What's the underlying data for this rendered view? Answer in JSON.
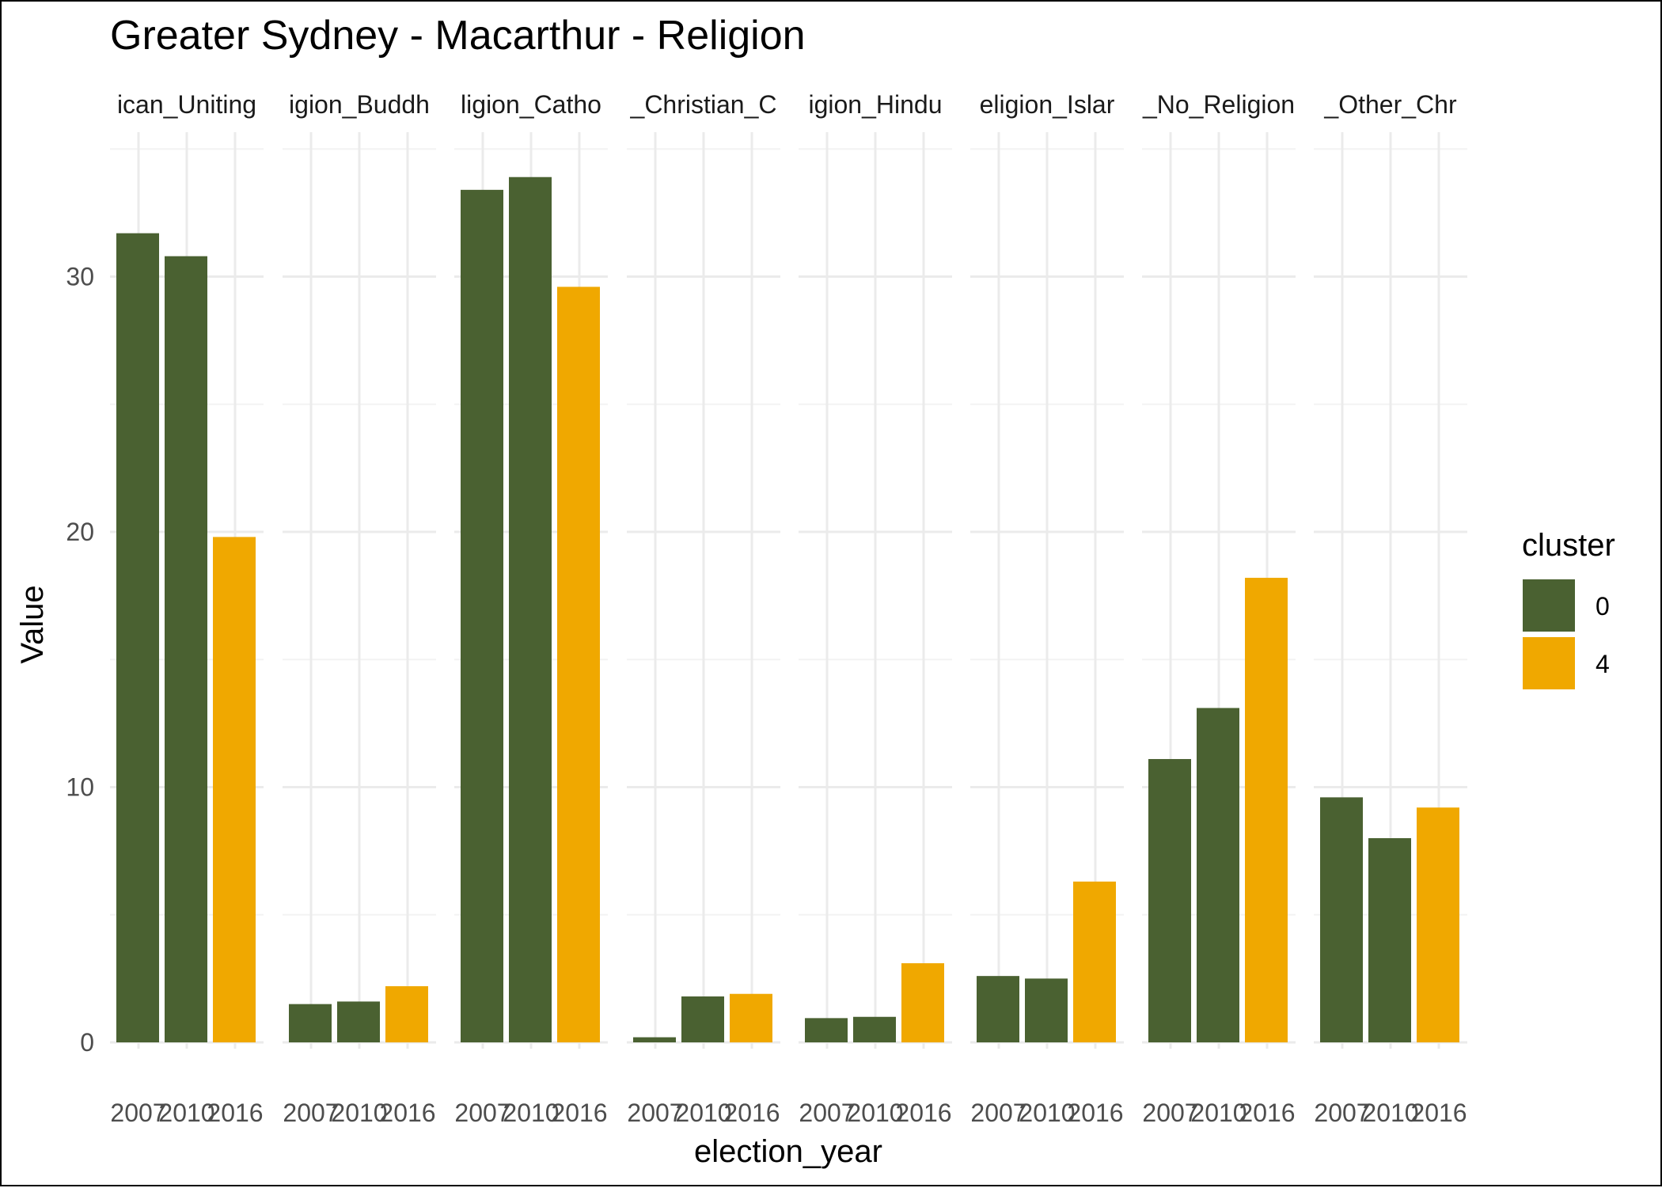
{
  "chart_data": {
    "type": "bar",
    "title": "Greater Sydney - Macarthur - Religion",
    "xlabel": "election_year",
    "ylabel": "Value",
    "ylim": [
      0,
      35
    ],
    "yticks": [
      0,
      10,
      20,
      30
    ],
    "grid": true,
    "legend": {
      "title": "cluster",
      "position": "right",
      "entries": [
        {
          "label": "0",
          "color": "#4a6131"
        },
        {
          "label": "4",
          "color": "#f0a800"
        }
      ]
    },
    "categories": [
      "2007",
      "2010",
      "2016"
    ],
    "facets": [
      {
        "label": "ican_Uniting",
        "values": [
          31.7,
          30.8,
          19.8
        ],
        "clusters": [
          "0",
          "0",
          "4"
        ]
      },
      {
        "label": "igion_Buddh",
        "values": [
          1.5,
          1.6,
          2.2
        ],
        "clusters": [
          "0",
          "0",
          "4"
        ]
      },
      {
        "label": "ligion_Catho",
        "values": [
          33.4,
          33.9,
          29.6
        ],
        "clusters": [
          "0",
          "0",
          "4"
        ]
      },
      {
        "label": "_Christian_C",
        "values": [
          0.2,
          1.8,
          1.9
        ],
        "clusters": [
          "0",
          "0",
          "4"
        ]
      },
      {
        "label": "igion_Hindu",
        "values": [
          0.95,
          1.0,
          3.1
        ],
        "clusters": [
          "0",
          "0",
          "4"
        ]
      },
      {
        "label": "eligion_Islar",
        "values": [
          2.6,
          2.5,
          6.3
        ],
        "clusters": [
          "0",
          "0",
          "4"
        ]
      },
      {
        "label": "_No_Religion",
        "values": [
          11.1,
          13.1,
          18.2
        ],
        "clusters": [
          "0",
          "0",
          "4"
        ]
      },
      {
        "label": "_Other_Chr",
        "values": [
          9.6,
          8.0,
          9.2
        ],
        "clusters": [
          "0",
          "0",
          "4"
        ]
      }
    ]
  }
}
